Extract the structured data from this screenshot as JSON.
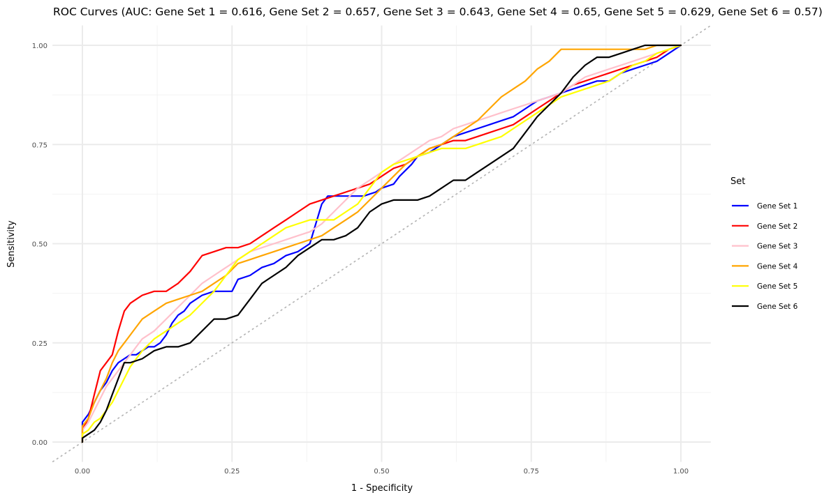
{
  "chart_data": {
    "type": "line",
    "title": "ROC Curves (AUC: Gene Set 1 = 0.616, Gene Set 2 = 0.657, Gene Set 3 = 0.643, Gene Set 4 = 0.65, Gene Set 5 = 0.629, Gene Set 6 = 0.57)",
    "xlabel": "1 - Specificity",
    "ylabel": "Sensitivity",
    "xlim": [
      -0.05,
      1.05
    ],
    "ylim": [
      -0.05,
      1.05
    ],
    "x_ticks": [
      0,
      0.25,
      0.5,
      0.75,
      1
    ],
    "x_tick_labels": [
      "0.00",
      "0.25",
      "0.50",
      "0.75",
      "1.00"
    ],
    "y_ticks": [
      0,
      0.25,
      0.5,
      0.75,
      1
    ],
    "y_tick_labels": [
      "0.00",
      "0.25",
      "0.50",
      "0.75",
      "1.00"
    ],
    "grid": true,
    "legend": {
      "title": "Set",
      "position": "right"
    },
    "reference_line": {
      "x": [
        -0.05,
        1.05
      ],
      "y": [
        -0.05,
        1.05
      ],
      "color": "#b3b3b3",
      "style": "dotted"
    },
    "series": [
      {
        "name": "Gene Set 1",
        "color": "#0000ff",
        "x": [
          0,
          0,
          0.01,
          0.02,
          0.03,
          0.04,
          0.05,
          0.06,
          0.07,
          0.08,
          0.09,
          0.1,
          0.11,
          0.12,
          0.13,
          0.14,
          0.15,
          0.16,
          0.17,
          0.18,
          0.2,
          0.22,
          0.23,
          0.25,
          0.26,
          0.28,
          0.3,
          0.32,
          0.34,
          0.36,
          0.38,
          0.39,
          0.4,
          0.41,
          0.43,
          0.45,
          0.47,
          0.49,
          0.5,
          0.52,
          0.53,
          0.55,
          0.56,
          0.58,
          0.6,
          0.62,
          0.64,
          0.66,
          0.68,
          0.7,
          0.72,
          0.74,
          0.76,
          0.78,
          0.8,
          0.82,
          0.84,
          0.86,
          0.88,
          0.9,
          0.92,
          0.94,
          0.96,
          0.98,
          1
        ],
        "y": [
          0,
          0.05,
          0.07,
          0.1,
          0.13,
          0.15,
          0.18,
          0.2,
          0.21,
          0.22,
          0.22,
          0.23,
          0.24,
          0.24,
          0.25,
          0.27,
          0.3,
          0.32,
          0.33,
          0.35,
          0.37,
          0.38,
          0.38,
          0.38,
          0.41,
          0.42,
          0.44,
          0.45,
          0.47,
          0.48,
          0.5,
          0.55,
          0.6,
          0.62,
          0.62,
          0.62,
          0.62,
          0.63,
          0.64,
          0.65,
          0.67,
          0.7,
          0.72,
          0.73,
          0.75,
          0.77,
          0.78,
          0.79,
          0.8,
          0.81,
          0.82,
          0.84,
          0.86,
          0.87,
          0.88,
          0.89,
          0.9,
          0.91,
          0.91,
          0.93,
          0.94,
          0.95,
          0.96,
          0.98,
          1
        ]
      },
      {
        "name": "Gene Set 2",
        "color": "#ff0000",
        "x": [
          0,
          0,
          0.01,
          0.02,
          0.03,
          0.04,
          0.05,
          0.06,
          0.07,
          0.08,
          0.09,
          0.1,
          0.12,
          0.14,
          0.16,
          0.18,
          0.2,
          0.22,
          0.24,
          0.26,
          0.28,
          0.3,
          0.32,
          0.34,
          0.36,
          0.38,
          0.4,
          0.42,
          0.44,
          0.46,
          0.48,
          0.5,
          0.52,
          0.54,
          0.56,
          0.58,
          0.6,
          0.62,
          0.64,
          0.66,
          0.68,
          0.7,
          0.72,
          0.74,
          0.76,
          0.78,
          0.8,
          0.82,
          0.84,
          0.86,
          0.88,
          0.9,
          0.92,
          0.94,
          0.96,
          0.98,
          1
        ],
        "y": [
          0,
          0.03,
          0.06,
          0.12,
          0.18,
          0.2,
          0.22,
          0.28,
          0.33,
          0.35,
          0.36,
          0.37,
          0.38,
          0.38,
          0.4,
          0.43,
          0.47,
          0.48,
          0.49,
          0.49,
          0.5,
          0.52,
          0.54,
          0.56,
          0.58,
          0.6,
          0.61,
          0.62,
          0.63,
          0.64,
          0.65,
          0.67,
          0.69,
          0.7,
          0.72,
          0.74,
          0.75,
          0.76,
          0.76,
          0.77,
          0.78,
          0.79,
          0.8,
          0.82,
          0.84,
          0.86,
          0.88,
          0.9,
          0.91,
          0.92,
          0.93,
          0.94,
          0.95,
          0.96,
          0.97,
          0.99,
          1
        ]
      },
      {
        "name": "Gene Set 3",
        "color": "#ffc0cb",
        "x": [
          0,
          0,
          0.01,
          0.02,
          0.03,
          0.04,
          0.05,
          0.06,
          0.07,
          0.08,
          0.09,
          0.1,
          0.12,
          0.14,
          0.16,
          0.18,
          0.2,
          0.22,
          0.24,
          0.26,
          0.28,
          0.3,
          0.32,
          0.34,
          0.36,
          0.38,
          0.4,
          0.42,
          0.44,
          0.46,
          0.48,
          0.5,
          0.52,
          0.54,
          0.56,
          0.58,
          0.6,
          0.62,
          0.64,
          0.66,
          0.68,
          0.7,
          0.72,
          0.74,
          0.76,
          0.78,
          0.8,
          0.82,
          0.84,
          0.86,
          0.88,
          0.9,
          0.92,
          0.94,
          0.96,
          0.98,
          1
        ],
        "y": [
          0,
          0.03,
          0.05,
          0.08,
          0.11,
          0.14,
          0.16,
          0.18,
          0.2,
          0.22,
          0.24,
          0.26,
          0.28,
          0.31,
          0.34,
          0.37,
          0.4,
          0.42,
          0.44,
          0.46,
          0.48,
          0.49,
          0.5,
          0.51,
          0.52,
          0.53,
          0.55,
          0.58,
          0.61,
          0.64,
          0.66,
          0.68,
          0.7,
          0.72,
          0.74,
          0.76,
          0.77,
          0.79,
          0.8,
          0.81,
          0.82,
          0.83,
          0.84,
          0.85,
          0.86,
          0.87,
          0.88,
          0.9,
          0.92,
          0.93,
          0.94,
          0.95,
          0.96,
          0.97,
          0.98,
          0.99,
          1
        ]
      },
      {
        "name": "Gene Set 4",
        "color": "#ffa500",
        "x": [
          0,
          0,
          0.01,
          0.02,
          0.03,
          0.04,
          0.05,
          0.06,
          0.07,
          0.08,
          0.09,
          0.1,
          0.12,
          0.14,
          0.16,
          0.18,
          0.2,
          0.22,
          0.24,
          0.26,
          0.28,
          0.3,
          0.32,
          0.34,
          0.36,
          0.38,
          0.4,
          0.42,
          0.44,
          0.46,
          0.48,
          0.5,
          0.52,
          0.54,
          0.56,
          0.58,
          0.6,
          0.62,
          0.64,
          0.66,
          0.68,
          0.7,
          0.72,
          0.74,
          0.76,
          0.78,
          0.8,
          0.82,
          0.84,
          0.86,
          0.88,
          0.9,
          0.92,
          0.94,
          0.96,
          0.98,
          1
        ],
        "y": [
          0,
          0.04,
          0.06,
          0.1,
          0.13,
          0.16,
          0.2,
          0.23,
          0.25,
          0.27,
          0.29,
          0.31,
          0.33,
          0.35,
          0.36,
          0.37,
          0.38,
          0.4,
          0.42,
          0.45,
          0.46,
          0.47,
          0.48,
          0.49,
          0.5,
          0.51,
          0.52,
          0.54,
          0.56,
          0.58,
          0.61,
          0.64,
          0.67,
          0.7,
          0.72,
          0.74,
          0.75,
          0.77,
          0.79,
          0.81,
          0.84,
          0.87,
          0.89,
          0.91,
          0.94,
          0.96,
          0.99,
          0.99,
          0.99,
          0.99,
          0.99,
          0.99,
          0.99,
          0.99,
          1,
          1,
          1
        ]
      },
      {
        "name": "Gene Set 5",
        "color": "#ffff00",
        "x": [
          0,
          0,
          0.01,
          0.02,
          0.03,
          0.04,
          0.05,
          0.06,
          0.07,
          0.08,
          0.09,
          0.1,
          0.12,
          0.14,
          0.16,
          0.18,
          0.2,
          0.22,
          0.24,
          0.26,
          0.28,
          0.3,
          0.32,
          0.34,
          0.36,
          0.38,
          0.4,
          0.42,
          0.44,
          0.46,
          0.48,
          0.5,
          0.52,
          0.54,
          0.56,
          0.58,
          0.6,
          0.62,
          0.64,
          0.66,
          0.68,
          0.7,
          0.72,
          0.74,
          0.76,
          0.78,
          0.8,
          0.82,
          0.84,
          0.86,
          0.88,
          0.9,
          0.92,
          0.94,
          0.96,
          0.98,
          1
        ],
        "y": [
          0,
          0.02,
          0.03,
          0.05,
          0.06,
          0.08,
          0.1,
          0.13,
          0.16,
          0.19,
          0.21,
          0.23,
          0.26,
          0.28,
          0.3,
          0.32,
          0.35,
          0.38,
          0.42,
          0.46,
          0.48,
          0.5,
          0.52,
          0.54,
          0.55,
          0.56,
          0.56,
          0.56,
          0.58,
          0.6,
          0.64,
          0.68,
          0.7,
          0.71,
          0.72,
          0.73,
          0.74,
          0.74,
          0.74,
          0.75,
          0.76,
          0.77,
          0.79,
          0.81,
          0.83,
          0.85,
          0.87,
          0.88,
          0.89,
          0.9,
          0.91,
          0.93,
          0.95,
          0.96,
          0.98,
          0.99,
          1
        ]
      },
      {
        "name": "Gene Set 6",
        "color": "#000000",
        "x": [
          0,
          0,
          0.01,
          0.02,
          0.03,
          0.04,
          0.05,
          0.06,
          0.07,
          0.08,
          0.1,
          0.12,
          0.14,
          0.16,
          0.18,
          0.2,
          0.22,
          0.24,
          0.26,
          0.28,
          0.3,
          0.32,
          0.34,
          0.36,
          0.38,
          0.4,
          0.42,
          0.44,
          0.46,
          0.48,
          0.5,
          0.52,
          0.54,
          0.56,
          0.58,
          0.6,
          0.62,
          0.64,
          0.66,
          0.68,
          0.7,
          0.72,
          0.74,
          0.76,
          0.78,
          0.8,
          0.82,
          0.84,
          0.86,
          0.88,
          0.9,
          0.92,
          0.94,
          0.96,
          0.98,
          1
        ],
        "y": [
          0,
          0.01,
          0.02,
          0.03,
          0.05,
          0.08,
          0.12,
          0.16,
          0.2,
          0.2,
          0.21,
          0.23,
          0.24,
          0.24,
          0.25,
          0.28,
          0.31,
          0.31,
          0.32,
          0.36,
          0.4,
          0.42,
          0.44,
          0.47,
          0.49,
          0.51,
          0.51,
          0.52,
          0.54,
          0.58,
          0.6,
          0.61,
          0.61,
          0.61,
          0.62,
          0.64,
          0.66,
          0.66,
          0.68,
          0.7,
          0.72,
          0.74,
          0.78,
          0.82,
          0.85,
          0.88,
          0.92,
          0.95,
          0.97,
          0.97,
          0.98,
          0.99,
          1,
          1,
          1,
          1
        ]
      }
    ]
  }
}
